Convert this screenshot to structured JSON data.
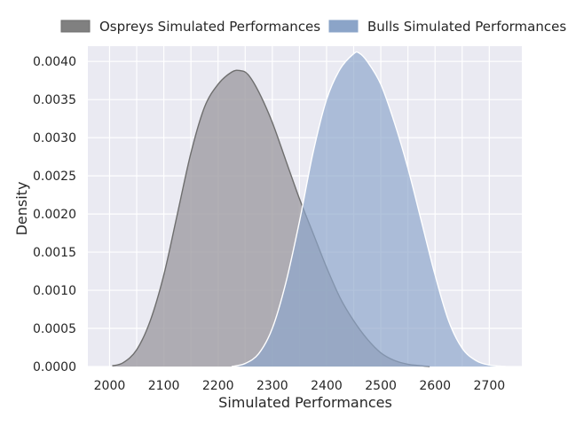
{
  "chart_data": {
    "type": "area",
    "xlabel": "Simulated Performances",
    "ylabel": "Density",
    "xlim": [
      1960,
      2760
    ],
    "ylim": [
      0,
      0.0042
    ],
    "xticks": [
      2000,
      2100,
      2200,
      2300,
      2400,
      2500,
      2600,
      2700
    ],
    "yticks": [
      0.0,
      0.0005,
      0.001,
      0.0015,
      0.002,
      0.0025,
      0.003,
      0.0035,
      0.004
    ],
    "ytick_labels": [
      "0.0000",
      "0.0005",
      "0.0010",
      "0.0015",
      "0.0020",
      "0.0025",
      "0.0030",
      "0.0035",
      "0.0040"
    ],
    "grid": true,
    "legend_position": "top",
    "series": [
      {
        "name": "Ospreys Simulated Performances",
        "color": "#808080",
        "fill": "#a19fa5",
        "edge": "#6e6e6e",
        "x": [
          2005,
          2025,
          2050,
          2075,
          2100,
          2125,
          2150,
          2175,
          2200,
          2225,
          2240,
          2255,
          2275,
          2300,
          2325,
          2350,
          2375,
          2400,
          2425,
          2450,
          2475,
          2500,
          2525,
          2550,
          2575,
          2590
        ],
        "y": [
          1e-05,
          5e-05,
          0.00022,
          0.0006,
          0.0012,
          0.002,
          0.0028,
          0.0034,
          0.0037,
          0.00386,
          0.00388,
          0.00383,
          0.0036,
          0.0032,
          0.0027,
          0.0022,
          0.00175,
          0.0013,
          0.0009,
          0.0006,
          0.00036,
          0.00018,
          8e-05,
          3e-05,
          1e-05,
          0.0
        ]
      },
      {
        "name": "Bulls Simulated Performances",
        "color": "#8ba4c8",
        "fill": "#8ea7cc",
        "edge": "#ffffff",
        "x": [
          2225,
          2250,
          2275,
          2300,
          2325,
          2350,
          2375,
          2400,
          2425,
          2450,
          2460,
          2475,
          2500,
          2525,
          2550,
          2575,
          2600,
          2625,
          2650,
          2675,
          2700,
          2730
        ],
        "y": [
          0.0,
          4e-05,
          0.00017,
          0.0005,
          0.0011,
          0.0019,
          0.0028,
          0.0035,
          0.0039,
          0.0041,
          0.00411,
          0.004,
          0.0037,
          0.0032,
          0.0026,
          0.0019,
          0.0012,
          0.0006,
          0.00024,
          8e-05,
          2e-05,
          0.0
        ]
      }
    ]
  }
}
